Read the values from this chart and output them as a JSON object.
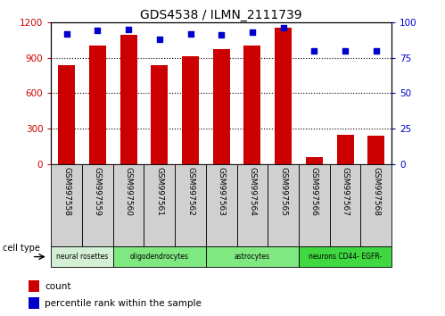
{
  "title": "GDS4538 / ILMN_2111739",
  "samples": [
    "GSM997558",
    "GSM997559",
    "GSM997560",
    "GSM997561",
    "GSM997562",
    "GSM997563",
    "GSM997564",
    "GSM997565",
    "GSM997566",
    "GSM997567",
    "GSM997568"
  ],
  "counts": [
    840,
    1000,
    1095,
    840,
    910,
    975,
    1005,
    1150,
    60,
    250,
    245
  ],
  "percentiles": [
    92,
    94,
    95,
    88,
    92,
    91,
    93,
    96,
    80,
    80,
    80
  ],
  "ylim_left": [
    0,
    1200
  ],
  "ylim_right": [
    0,
    100
  ],
  "yticks_left": [
    0,
    300,
    600,
    900,
    1200
  ],
  "yticks_right": [
    0,
    25,
    50,
    75,
    100
  ],
  "cell_types": [
    {
      "label": "neural rosettes",
      "start": 0,
      "end": 2,
      "color": "#d4f0d4"
    },
    {
      "label": "oligodendrocytes",
      "start": 2,
      "end": 5,
      "color": "#80e880"
    },
    {
      "label": "astrocytes",
      "start": 5,
      "end": 8,
      "color": "#80e880"
    },
    {
      "label": "neurons CD44- EGFR-",
      "start": 8,
      "end": 11,
      "color": "#40d840"
    }
  ],
  "bar_color": "#cc0000",
  "scatter_color": "#0000cc",
  "bg_color": "#ffffff",
  "grid_color": "#000000",
  "tick_label_color_left": "#cc0000",
  "tick_label_color_right": "#0000cc",
  "legend_count_label": "count",
  "legend_pct_label": "percentile rank within the sample",
  "cell_type_label": "cell type"
}
